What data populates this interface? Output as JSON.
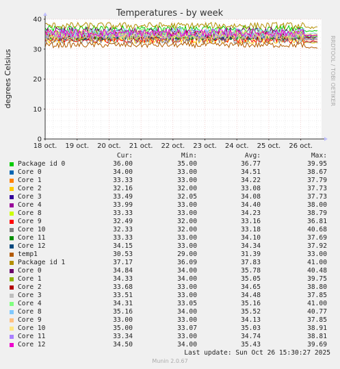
{
  "chart_data": {
    "type": "line",
    "title": "Temperatures - by week",
    "ylabel": "degrees Celsius",
    "ylim": [
      0,
      40
    ],
    "yticks": [
      "0",
      "10",
      "20",
      "30",
      "40"
    ],
    "x_ticks": [
      "18 oct.",
      "19 oct.",
      "20 oct.",
      "21 oct.",
      "22 oct.",
      "23 oct.",
      "24 oct.",
      "25 oct.",
      "26 oct."
    ],
    "side_label": "RRDTOOL / TOBI OETIKER",
    "column_headers": [
      "Cur:",
      "Min:",
      "Avg:",
      "Max:"
    ],
    "series": [
      {
        "name": "Package id 0",
        "color": "#00cc00",
        "cur": "36.00",
        "min": "35.00",
        "avg": "36.77",
        "max": "39.95"
      },
      {
        "name": "Core 0",
        "color": "#0066b3",
        "cur": "34.00",
        "min": "33.00",
        "avg": "34.51",
        "max": "38.67"
      },
      {
        "name": "Core 1",
        "color": "#ff8000",
        "cur": "33.33",
        "min": "33.00",
        "avg": "34.22",
        "max": "37.79"
      },
      {
        "name": "Core 2",
        "color": "#ffcc00",
        "cur": "32.16",
        "min": "32.00",
        "avg": "33.08",
        "max": "37.73"
      },
      {
        "name": "Core 3",
        "color": "#330099",
        "cur": "33.49",
        "min": "32.05",
        "avg": "34.08",
        "max": "37.73"
      },
      {
        "name": "Core 4",
        "color": "#990099",
        "cur": "33.99",
        "min": "33.00",
        "avg": "34.40",
        "max": "38.00"
      },
      {
        "name": "Core 8",
        "color": "#ccff00",
        "cur": "33.33",
        "min": "33.00",
        "avg": "34.23",
        "max": "38.79"
      },
      {
        "name": "Core 9",
        "color": "#ff0000",
        "cur": "32.49",
        "min": "32.00",
        "avg": "33.16",
        "max": "36.81"
      },
      {
        "name": "Core 10",
        "color": "#808080",
        "cur": "32.33",
        "min": "32.00",
        "avg": "33.18",
        "max": "40.68"
      },
      {
        "name": "Core 11",
        "color": "#008f00",
        "cur": "33.33",
        "min": "33.00",
        "avg": "34.10",
        "max": "37.69"
      },
      {
        "name": "Core 12",
        "color": "#00487d",
        "cur": "34.15",
        "min": "33.00",
        "avg": "34.34",
        "max": "37.92"
      },
      {
        "name": "temp1",
        "color": "#b35a00",
        "cur": "30.53",
        "min": "29.00",
        "avg": "31.39",
        "max": "33.00"
      },
      {
        "name": "Package id 1",
        "color": "#b38f00",
        "cur": "37.17",
        "min": "36.09",
        "avg": "37.83",
        "max": "41.00"
      },
      {
        "name": "Core 0",
        "color": "#6b006b",
        "cur": "34.84",
        "min": "34.00",
        "avg": "35.78",
        "max": "40.48"
      },
      {
        "name": "Core 1",
        "color": "#8fb300",
        "cur": "34.33",
        "min": "34.00",
        "avg": "35.05",
        "max": "39.75"
      },
      {
        "name": "Core 2",
        "color": "#b30000",
        "cur": "33.68",
        "min": "33.00",
        "avg": "34.65",
        "max": "38.80"
      },
      {
        "name": "Core 3",
        "color": "#bebebe",
        "cur": "33.51",
        "min": "33.00",
        "avg": "34.48",
        "max": "37.85"
      },
      {
        "name": "Core 4",
        "color": "#80ff80",
        "cur": "34.31",
        "min": "33.05",
        "avg": "35.16",
        "max": "41.00"
      },
      {
        "name": "Core 8",
        "color": "#80c9ff",
        "cur": "35.16",
        "min": "34.00",
        "avg": "35.52",
        "max": "40.77"
      },
      {
        "name": "Core 9",
        "color": "#ffc080",
        "cur": "33.00",
        "min": "33.00",
        "avg": "34.13",
        "max": "37.85"
      },
      {
        "name": "Core 10",
        "color": "#ffe680",
        "cur": "35.00",
        "min": "33.07",
        "avg": "35.03",
        "max": "38.91"
      },
      {
        "name": "Core 11",
        "color": "#aa80ff",
        "cur": "33.34",
        "min": "33.00",
        "avg": "34.74",
        "max": "38.81"
      },
      {
        "name": "Core 12",
        "color": "#ee00cc",
        "cur": "34.50",
        "min": "34.00",
        "avg": "35.43",
        "max": "39.69"
      }
    ]
  },
  "last_update": "Last update: Sun Oct 26 15:30:27 2025",
  "footer": "Munin 2.0.67"
}
